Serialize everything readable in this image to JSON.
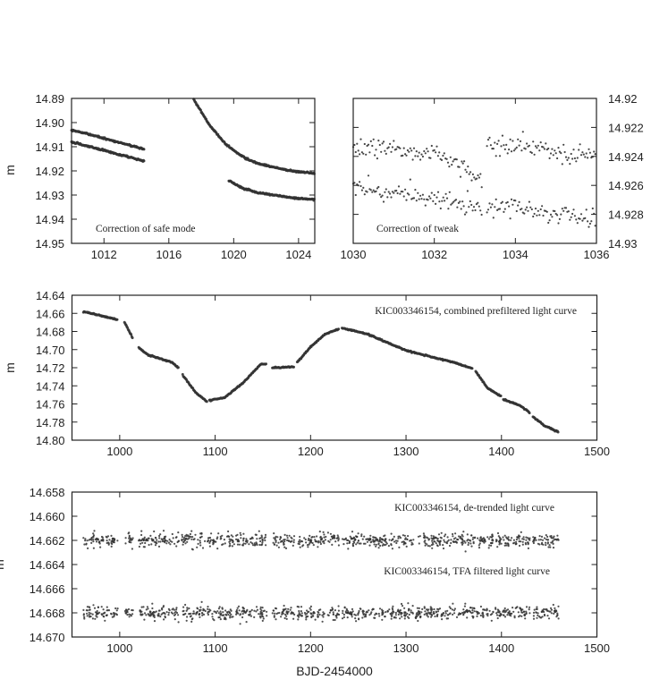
{
  "figure": {
    "xlabel": "BJD-2454000",
    "point_color": "#333333"
  },
  "chart_data": [
    {
      "id": "safe-mode",
      "type": "scatter",
      "ylabel": "m",
      "xlim": [
        1010,
        1025
      ],
      "ylim": [
        14.89,
        14.95
      ],
      "y_inverted": true,
      "yaxis_side": "left",
      "xticks": [
        {
          "v": 1012,
          "label": "1012"
        },
        {
          "v": 1016,
          "label": "1016"
        },
        {
          "v": 1020,
          "label": "1020"
        },
        {
          "v": 1024,
          "label": "1024"
        }
      ],
      "yticks": [
        {
          "v": 14.89,
          "label": "14.89"
        },
        {
          "v": 14.9,
          "label": "14.90"
        },
        {
          "v": 14.91,
          "label": "14.91"
        },
        {
          "v": 14.92,
          "label": "14.92"
        },
        {
          "v": 14.93,
          "label": "14.93"
        },
        {
          "v": 14.94,
          "label": "14.94"
        },
        {
          "v": 14.95,
          "label": "14.95"
        }
      ],
      "annotation": {
        "text": "Correction of safe mode",
        "placement": "bottom-left"
      },
      "noise": 0.0004,
      "series": [
        {
          "segments": [
            [
              [
                1010,
                14.903
              ],
              [
                1014.5,
                14.911
              ]
            ],
            [
              [
                1017.5,
                14.89
              ],
              [
                1018.5,
                14.901
              ],
              [
                1019.5,
                14.909
              ],
              [
                1020.5,
                14.914
              ],
              [
                1021.5,
                14.917
              ],
              [
                1022.5,
                14.9185
              ],
              [
                1023.5,
                14.92
              ],
              [
                1025,
                14.921
              ]
            ]
          ]
        },
        {
          "segments": [
            [
              [
                1010,
                14.908
              ],
              [
                1014.5,
                14.916
              ]
            ],
            [
              [
                1019.7,
                14.924
              ],
              [
                1020.5,
                14.927
              ],
              [
                1021.5,
                14.929
              ],
              [
                1022.5,
                14.93
              ],
              [
                1023.5,
                14.931
              ],
              [
                1025,
                14.932
              ]
            ]
          ]
        }
      ]
    },
    {
      "id": "tweak",
      "type": "scatter",
      "xlim": [
        1030,
        1036
      ],
      "ylim": [
        14.92,
        14.93
      ],
      "y_inverted": true,
      "yaxis_side": "right",
      "xticks": [
        {
          "v": 1030,
          "label": "1030"
        },
        {
          "v": 1032,
          "label": "1032"
        },
        {
          "v": 1034,
          "label": "1034"
        },
        {
          "v": 1036,
          "label": "1036"
        }
      ],
      "yticks": [
        {
          "v": 14.92,
          "label": "14.92"
        },
        {
          "v": 14.922,
          "label": "14.922"
        },
        {
          "v": 14.924,
          "label": "14.924"
        },
        {
          "v": 14.926,
          "label": "14.926"
        },
        {
          "v": 14.928,
          "label": "14.928"
        },
        {
          "v": 14.93,
          "label": "14.93"
        }
      ],
      "annotation": {
        "text": "Correction of tweak",
        "placement": "bottom-left"
      },
      "noise": 0.0008,
      "series": [
        {
          "segments": [
            [
              [
                1030,
                14.9232
              ],
              [
                1031,
                14.9235
              ],
              [
                1032,
                14.9238
              ],
              [
                1032.8,
                14.9248
              ],
              [
                1033.2,
                14.9255
              ]
            ],
            [
              [
                1033.3,
                14.9232
              ],
              [
                1034,
                14.9233
              ],
              [
                1035,
                14.9237
              ],
              [
                1036,
                14.924
              ]
            ]
          ]
        },
        {
          "segments": [
            [
              [
                1030,
                14.9262
              ],
              [
                1031,
                14.9265
              ],
              [
                1032,
                14.927
              ],
              [
                1033.2,
                14.9276
              ]
            ],
            [
              [
                1033.3,
                14.9274
              ],
              [
                1034,
                14.9275
              ],
              [
                1035,
                14.928
              ],
              [
                1036,
                14.9282
              ]
            ]
          ]
        }
      ]
    },
    {
      "id": "prefiltered",
      "type": "scatter",
      "ylabel": "m",
      "xlim": [
        950,
        1500
      ],
      "ylim": [
        14.64,
        14.8
      ],
      "y_inverted": true,
      "yaxis_side": "left",
      "xticks": [
        {
          "v": 1000,
          "label": "1000"
        },
        {
          "v": 1100,
          "label": "1100"
        },
        {
          "v": 1200,
          "label": "1200"
        },
        {
          "v": 1300,
          "label": "1300"
        },
        {
          "v": 1400,
          "label": "1400"
        },
        {
          "v": 1500,
          "label": "1500"
        }
      ],
      "yticks": [
        {
          "v": 14.64,
          "label": "14.64"
        },
        {
          "v": 14.66,
          "label": "14.66"
        },
        {
          "v": 14.68,
          "label": "14.68"
        },
        {
          "v": 14.7,
          "label": "14.70"
        },
        {
          "v": 14.72,
          "label": "14.72"
        },
        {
          "v": 14.74,
          "label": "14.74"
        },
        {
          "v": 14.76,
          "label": "14.76"
        },
        {
          "v": 14.78,
          "label": "14.78"
        },
        {
          "v": 14.8,
          "label": "14.80"
        }
      ],
      "annotation": {
        "text": "KIC003346154, combined prefiltered light curve",
        "placement": "top-right"
      },
      "noise": 0.0008,
      "series": [
        {
          "segments": [
            [
              [
                962,
                14.658
              ],
              [
                998,
                14.667
              ]
            ],
            [
              [
                1005,
                14.67
              ],
              [
                1014,
                14.688
              ]
            ],
            [
              [
                1020,
                14.698
              ],
              [
                1030,
                14.706
              ],
              [
                1045,
                14.711
              ],
              [
                1055,
                14.714
              ],
              [
                1062,
                14.721
              ]
            ],
            [
              [
                1066,
                14.728
              ],
              [
                1080,
                14.748
              ],
              [
                1092,
                14.758
              ]
            ],
            [
              [
                1094,
                14.756
              ],
              [
                1110,
                14.753
              ],
              [
                1130,
                14.736
              ],
              [
                1148,
                14.716
              ],
              [
                1154,
                14.716
              ]
            ],
            [
              [
                1160,
                14.72
              ],
              [
                1183,
                14.719
              ]
            ],
            [
              [
                1186,
                14.714
              ],
              [
                1200,
                14.697
              ],
              [
                1215,
                14.683
              ],
              [
                1230,
                14.677
              ]
            ],
            [
              [
                1233,
                14.676
              ],
              [
                1260,
                14.683
              ],
              [
                1280,
                14.692
              ],
              [
                1300,
                14.701
              ],
              [
                1330,
                14.709
              ],
              [
                1350,
                14.714
              ],
              [
                1370,
                14.721
              ]
            ],
            [
              [
                1373,
                14.724
              ],
              [
                1385,
                14.742
              ],
              [
                1400,
                14.752
              ]
            ],
            [
              [
                1402,
                14.755
              ],
              [
                1420,
                14.762
              ],
              [
                1430,
                14.77
              ]
            ],
            [
              [
                1433,
                14.774
              ],
              [
                1445,
                14.784
              ],
              [
                1460,
                14.791
              ]
            ]
          ]
        }
      ]
    },
    {
      "id": "detrended-tfa",
      "type": "scatter",
      "ylabel": "m",
      "xlabel": "BJD-2454000",
      "xlim": [
        950,
        1500
      ],
      "ylim": [
        14.658,
        14.67
      ],
      "y_inverted": true,
      "yaxis_side": "left",
      "xticks": [
        {
          "v": 1000,
          "label": "1000"
        },
        {
          "v": 1100,
          "label": "1100"
        },
        {
          "v": 1200,
          "label": "1200"
        },
        {
          "v": 1300,
          "label": "1300"
        },
        {
          "v": 1400,
          "label": "1400"
        },
        {
          "v": 1500,
          "label": "1500"
        }
      ],
      "yticks": [
        {
          "v": 14.658,
          "label": "14.658"
        },
        {
          "v": 14.66,
          "label": "14.660"
        },
        {
          "v": 14.662,
          "label": "14.662"
        },
        {
          "v": 14.664,
          "label": "14.664"
        },
        {
          "v": 14.666,
          "label": "14.666"
        },
        {
          "v": 14.668,
          "label": "14.668"
        },
        {
          "v": 14.67,
          "label": "14.670"
        }
      ],
      "annotations": [
        {
          "text": "KIC003346154, de-trended light curve",
          "placement": "top-right"
        },
        {
          "text": "KIC003346154, TFA filtered light curve",
          "placement": "middle-right"
        }
      ],
      "segments_x": [
        [
          962,
          998
        ],
        [
          1005,
          1014
        ],
        [
          1020,
          1062
        ],
        [
          1065,
          1090
        ],
        [
          1092,
          1120
        ],
        [
          1122,
          1154
        ],
        [
          1160,
          1183
        ],
        [
          1186,
          1216
        ],
        [
          1218,
          1230
        ],
        [
          1233,
          1308
        ],
        [
          1310,
          1400
        ],
        [
          1401,
          1430
        ],
        [
          1433,
          1460
        ]
      ],
      "noise": 0.0005,
      "series": [
        {
          "name": "KIC003346154, de-trended light curve",
          "mean": 14.662
        },
        {
          "name": "KIC003346154, TFA filtered light curve",
          "mean": 14.668
        }
      ]
    }
  ]
}
